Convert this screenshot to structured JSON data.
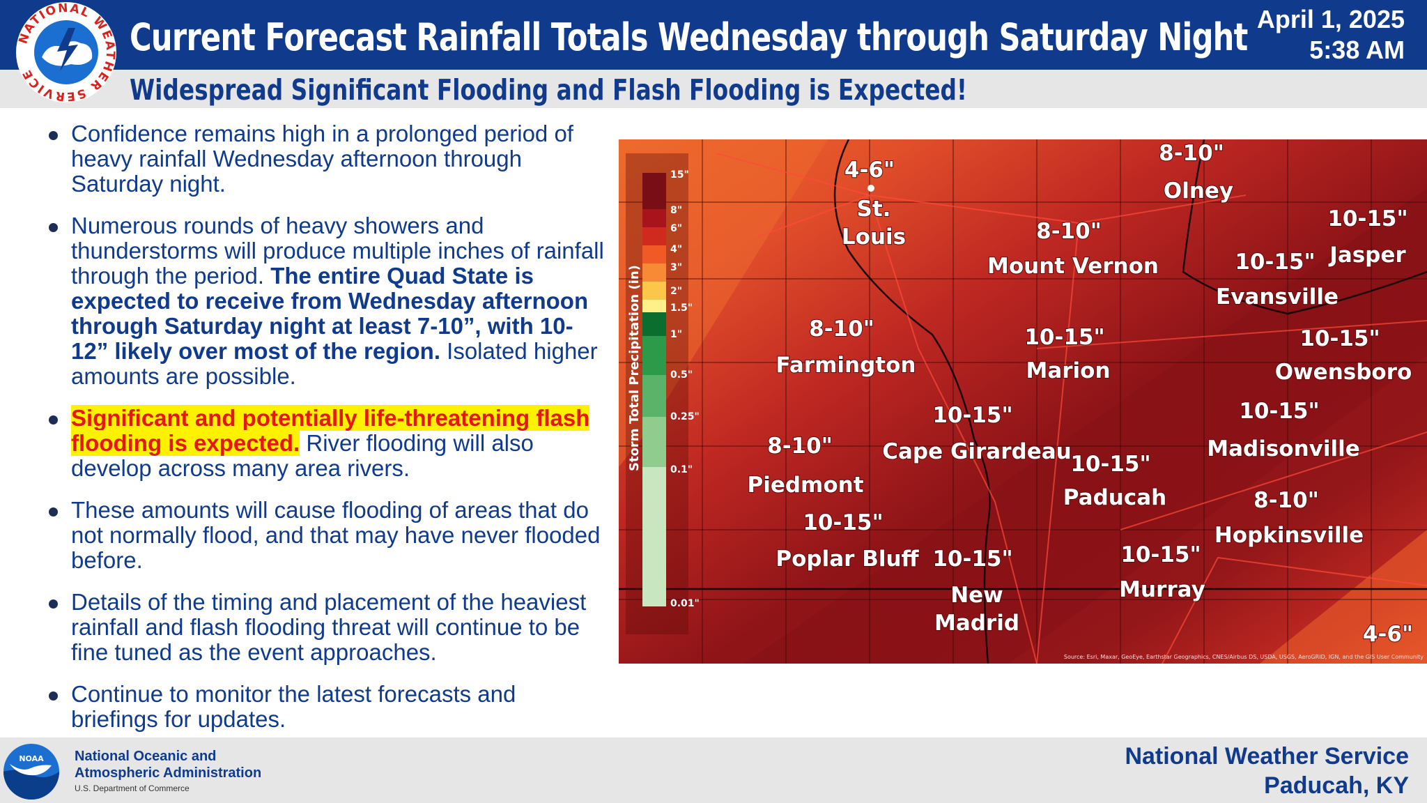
{
  "header": {
    "title": "Current Forecast Rainfall Totals Wednesday through Saturday Night",
    "subtitle": "Widespread Significant Flooding and Flash Flooding is Expected!",
    "date": "April 1, 2025",
    "time": "5:38 AM",
    "logo_text": "NATIONAL WEATHER SERVICE"
  },
  "bullets": [
    {
      "text": "Confidence remains high in a prolonged period of heavy rainfall Wednesday afternoon through Saturday night."
    },
    {
      "text_a": "Numerous rounds of heavy showers and thunderstorms will produce multiple inches of rainfall through the period. ",
      "bold": "The entire Quad State is expected to receive from Wednesday afternoon through Saturday night at least 7-10”, with 10-12” likely over most of the region.",
      "text_b": "  Isolated higher amounts are possible."
    },
    {
      "highlight": "Significant and potentially life-threatening flash flooding is expected.",
      "text": " River flooding will also develop across many area rivers."
    },
    {
      "text": "These amounts will cause flooding of areas that do not normally flood, and that may have never flooded before."
    },
    {
      "text": "Details of the timing and placement of the heaviest rainfall and flash flooding threat will continue to be fine tuned as the event approaches."
    },
    {
      "text": "Continue to monitor the latest forecasts and briefings for updates."
    }
  ],
  "map": {
    "legend_title": "Storm Total Precipitation (in)",
    "legend_ticks": [
      "15\"",
      "8\"",
      "6\"",
      "4\"",
      "3\"",
      "2\"",
      "1.5\"",
      "1\"",
      "0.5\"",
      "0.25\"",
      "0.1\"",
      "0.01\""
    ],
    "source": "Source: Esri, Maxar, GeoEye, Earthstar Geographics, CNES/Airbus DS, USDA, USGS, AeroGRID, IGN, and the GIS User Community",
    "colors": {
      "dark": "#8e1418",
      "mid": "#b8221f",
      "light": "#dd4b2a",
      "orange": "#ef6a2c"
    },
    "cities": [
      {
        "amount": "4-6\"",
        "name": "St.",
        "name2": "Louis"
      },
      {
        "amount": "8-10\"",
        "name": "Olney"
      },
      {
        "amount": "8-10\"",
        "name": "Mount Vernon"
      },
      {
        "amount": "10-15\"",
        "name": "Jasper"
      },
      {
        "amount": "10-15\"",
        "name": "Evansville"
      },
      {
        "amount": "8-10\"",
        "name": "Farmington"
      },
      {
        "amount": "10-15\"",
        "name": "Marion"
      },
      {
        "amount": "10-15\"",
        "name": "Owensboro"
      },
      {
        "amount": "10-15\"",
        "name": "Cape Girardeau"
      },
      {
        "amount": "10-15\"",
        "name": "Madisonville"
      },
      {
        "amount": "8-10\"",
        "name": "Piedmont"
      },
      {
        "amount": "10-15\"",
        "name": "Paducah"
      },
      {
        "amount": "10-15\"",
        "name": "Poplar Bluff"
      },
      {
        "amount": "8-10\"",
        "name": "Hopkinsville"
      },
      {
        "amount": "10-15\"",
        "name": "New",
        "name2": "Madrid"
      },
      {
        "amount": "10-15\"",
        "name": "Murray"
      },
      {
        "amount": "4-6\""
      }
    ]
  },
  "footer": {
    "agency_line1": "National Oceanic and",
    "agency_line2": "Atmospheric Administration",
    "agency_line3": "U.S. Department of Commerce",
    "noaa_logo_text": "NOAA",
    "office_line1": "National Weather Service",
    "office_line2": "Paducah, KY"
  }
}
